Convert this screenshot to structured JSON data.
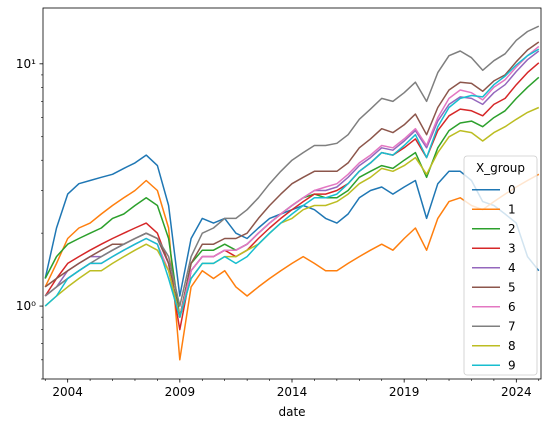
{
  "chart_data": {
    "type": "line",
    "xlabel": "date",
    "ylabel": "",
    "yscale": "log",
    "xlim": [
      2002.9,
      2025.1
    ],
    "ylim": [
      0.5,
      17
    ],
    "grid": false,
    "legend": {
      "title": "X_group",
      "placement": "lower-right"
    },
    "x_ticks": [
      2004,
      2009,
      2014,
      2019,
      2024
    ],
    "x_tick_labels": [
      "2004",
      "2009",
      "2014",
      "2019",
      "2024"
    ],
    "y_ticks": [
      1,
      10
    ],
    "y_tick_labels": [
      "10⁰",
      "10¹"
    ],
    "x": [
      2003.0,
      2003.5,
      2004.0,
      2004.5,
      2005.0,
      2005.5,
      2006.0,
      2006.5,
      2007.0,
      2007.5,
      2008.0,
      2008.5,
      2009.0,
      2009.5,
      2010.0,
      2010.5,
      2011.0,
      2011.5,
      2012.0,
      2012.5,
      2013.0,
      2013.5,
      2014.0,
      2014.5,
      2015.0,
      2015.5,
      2016.0,
      2016.5,
      2017.0,
      2017.5,
      2018.0,
      2018.5,
      2019.0,
      2019.5,
      2020.0,
      2020.5,
      2021.0,
      2021.5,
      2022.0,
      2022.5,
      2023.0,
      2023.5,
      2024.0,
      2024.5,
      2025.0
    ],
    "series": [
      {
        "name": "0",
        "color": "#1f77b4",
        "values": [
          1.3,
          2.1,
          2.9,
          3.2,
          3.3,
          3.4,
          3.5,
          3.7,
          3.9,
          4.2,
          3.8,
          2.6,
          1.1,
          1.9,
          2.3,
          2.2,
          2.3,
          2.0,
          1.9,
          2.1,
          2.3,
          2.4,
          2.5,
          2.6,
          2.5,
          2.3,
          2.2,
          2.4,
          2.8,
          3.0,
          3.1,
          2.9,
          3.1,
          3.3,
          2.3,
          3.2,
          3.6,
          3.6,
          3.3,
          2.7,
          2.6,
          2.4,
          2.2,
          1.6,
          1.4
        ]
      },
      {
        "name": "1",
        "color": "#ff7f0e",
        "values": [
          1.2,
          1.5,
          1.9,
          2.1,
          2.2,
          2.4,
          2.6,
          2.8,
          3.0,
          3.3,
          3.0,
          2.1,
          0.6,
          1.2,
          1.4,
          1.3,
          1.4,
          1.2,
          1.1,
          1.2,
          1.3,
          1.4,
          1.5,
          1.6,
          1.5,
          1.4,
          1.4,
          1.5,
          1.6,
          1.7,
          1.8,
          1.7,
          1.9,
          2.1,
          1.7,
          2.3,
          2.7,
          2.8,
          2.6,
          2.5,
          2.7,
          2.9,
          3.1,
          3.3,
          3.5
        ]
      },
      {
        "name": "2",
        "color": "#2ca02c",
        "values": [
          1.3,
          1.6,
          1.8,
          1.9,
          2.0,
          2.1,
          2.3,
          2.4,
          2.6,
          2.8,
          2.6,
          1.9,
          0.9,
          1.5,
          1.7,
          1.7,
          1.8,
          1.7,
          1.8,
          2.0,
          2.2,
          2.4,
          2.6,
          2.8,
          2.9,
          2.8,
          2.8,
          3.0,
          3.4,
          3.6,
          3.8,
          3.7,
          4.0,
          4.3,
          3.4,
          4.5,
          5.3,
          5.7,
          5.8,
          5.5,
          6.0,
          6.4,
          7.2,
          8.0,
          8.8
        ]
      },
      {
        "name": "3",
        "color": "#d62728",
        "values": [
          1.1,
          1.3,
          1.5,
          1.6,
          1.7,
          1.8,
          1.9,
          2.0,
          2.1,
          2.2,
          2.0,
          1.5,
          0.8,
          1.4,
          1.6,
          1.6,
          1.7,
          1.6,
          1.7,
          1.9,
          2.1,
          2.3,
          2.5,
          2.7,
          2.9,
          2.9,
          3.0,
          3.2,
          3.6,
          3.9,
          4.3,
          4.2,
          4.5,
          4.9,
          4.1,
          5.3,
          6.1,
          6.5,
          6.4,
          6.1,
          6.8,
          7.2,
          8.2,
          9.2,
          10.1
        ]
      },
      {
        "name": "4",
        "color": "#9467bd",
        "values": [
          1.1,
          1.2,
          1.4,
          1.5,
          1.6,
          1.6,
          1.7,
          1.8,
          1.9,
          2.0,
          1.9,
          1.5,
          0.9,
          1.4,
          1.6,
          1.6,
          1.7,
          1.7,
          1.8,
          2.0,
          2.2,
          2.4,
          2.6,
          2.8,
          3.0,
          3.0,
          3.1,
          3.4,
          3.8,
          4.1,
          4.5,
          4.4,
          4.8,
          5.3,
          4.5,
          5.8,
          6.8,
          7.3,
          7.2,
          6.8,
          7.6,
          8.2,
          9.3,
          10.4,
          11.3
        ]
      },
      {
        "name": "5",
        "color": "#8c564b",
        "values": [
          1.2,
          1.3,
          1.4,
          1.5,
          1.6,
          1.7,
          1.8,
          1.8,
          1.9,
          2.0,
          1.9,
          1.5,
          0.9,
          1.5,
          1.8,
          1.8,
          1.9,
          1.9,
          2.0,
          2.3,
          2.6,
          2.9,
          3.2,
          3.4,
          3.6,
          3.6,
          3.6,
          3.9,
          4.5,
          4.9,
          5.4,
          5.2,
          5.6,
          6.2,
          5.1,
          6.6,
          7.8,
          8.4,
          8.3,
          7.7,
          8.5,
          9.0,
          10.2,
          11.4,
          12.3
        ]
      },
      {
        "name": "6",
        "color": "#e377c2",
        "values": [
          1.1,
          1.2,
          1.3,
          1.4,
          1.5,
          1.5,
          1.6,
          1.7,
          1.8,
          1.9,
          1.8,
          1.4,
          0.9,
          1.4,
          1.6,
          1.6,
          1.7,
          1.7,
          1.8,
          2.0,
          2.2,
          2.4,
          2.6,
          2.8,
          3.0,
          3.1,
          3.2,
          3.5,
          3.9,
          4.2,
          4.6,
          4.5,
          4.9,
          5.4,
          4.6,
          6.0,
          7.2,
          7.8,
          7.6,
          7.1,
          8.0,
          8.6,
          9.7,
          10.8,
          11.8
        ]
      },
      {
        "name": "7",
        "color": "#7f7f7f",
        "values": [
          1.1,
          1.2,
          1.3,
          1.4,
          1.5,
          1.6,
          1.7,
          1.8,
          1.9,
          2.0,
          1.9,
          1.6,
          1.0,
          1.6,
          2.0,
          2.1,
          2.3,
          2.3,
          2.5,
          2.8,
          3.2,
          3.6,
          4.0,
          4.3,
          4.6,
          4.6,
          4.7,
          5.1,
          5.9,
          6.5,
          7.2,
          7.0,
          7.6,
          8.4,
          7.0,
          9.2,
          10.8,
          11.3,
          10.6,
          9.4,
          10.3,
          11.0,
          12.5,
          13.6,
          14.3
        ]
      },
      {
        "name": "8",
        "color": "#bcbd22",
        "values": [
          1.0,
          1.1,
          1.2,
          1.3,
          1.4,
          1.4,
          1.5,
          1.6,
          1.7,
          1.8,
          1.7,
          1.4,
          0.9,
          1.3,
          1.5,
          1.5,
          1.6,
          1.6,
          1.7,
          1.8,
          2.0,
          2.2,
          2.3,
          2.5,
          2.6,
          2.6,
          2.7,
          2.9,
          3.2,
          3.4,
          3.7,
          3.6,
          3.8,
          4.1,
          3.5,
          4.3,
          5.0,
          5.3,
          5.2,
          4.8,
          5.2,
          5.5,
          5.9,
          6.3,
          6.6
        ]
      },
      {
        "name": "9",
        "color": "#17becf",
        "values": [
          1.0,
          1.1,
          1.3,
          1.4,
          1.5,
          1.5,
          1.6,
          1.7,
          1.8,
          1.9,
          1.8,
          1.3,
          0.9,
          1.3,
          1.5,
          1.5,
          1.6,
          1.5,
          1.6,
          1.8,
          2.0,
          2.2,
          2.4,
          2.6,
          2.8,
          2.8,
          2.9,
          3.2,
          3.6,
          3.9,
          4.3,
          4.2,
          4.6,
          5.1,
          4.1,
          5.5,
          6.6,
          7.2,
          7.4,
          7.3,
          8.2,
          8.9,
          9.9,
          10.8,
          11.5
        ]
      }
    ]
  }
}
